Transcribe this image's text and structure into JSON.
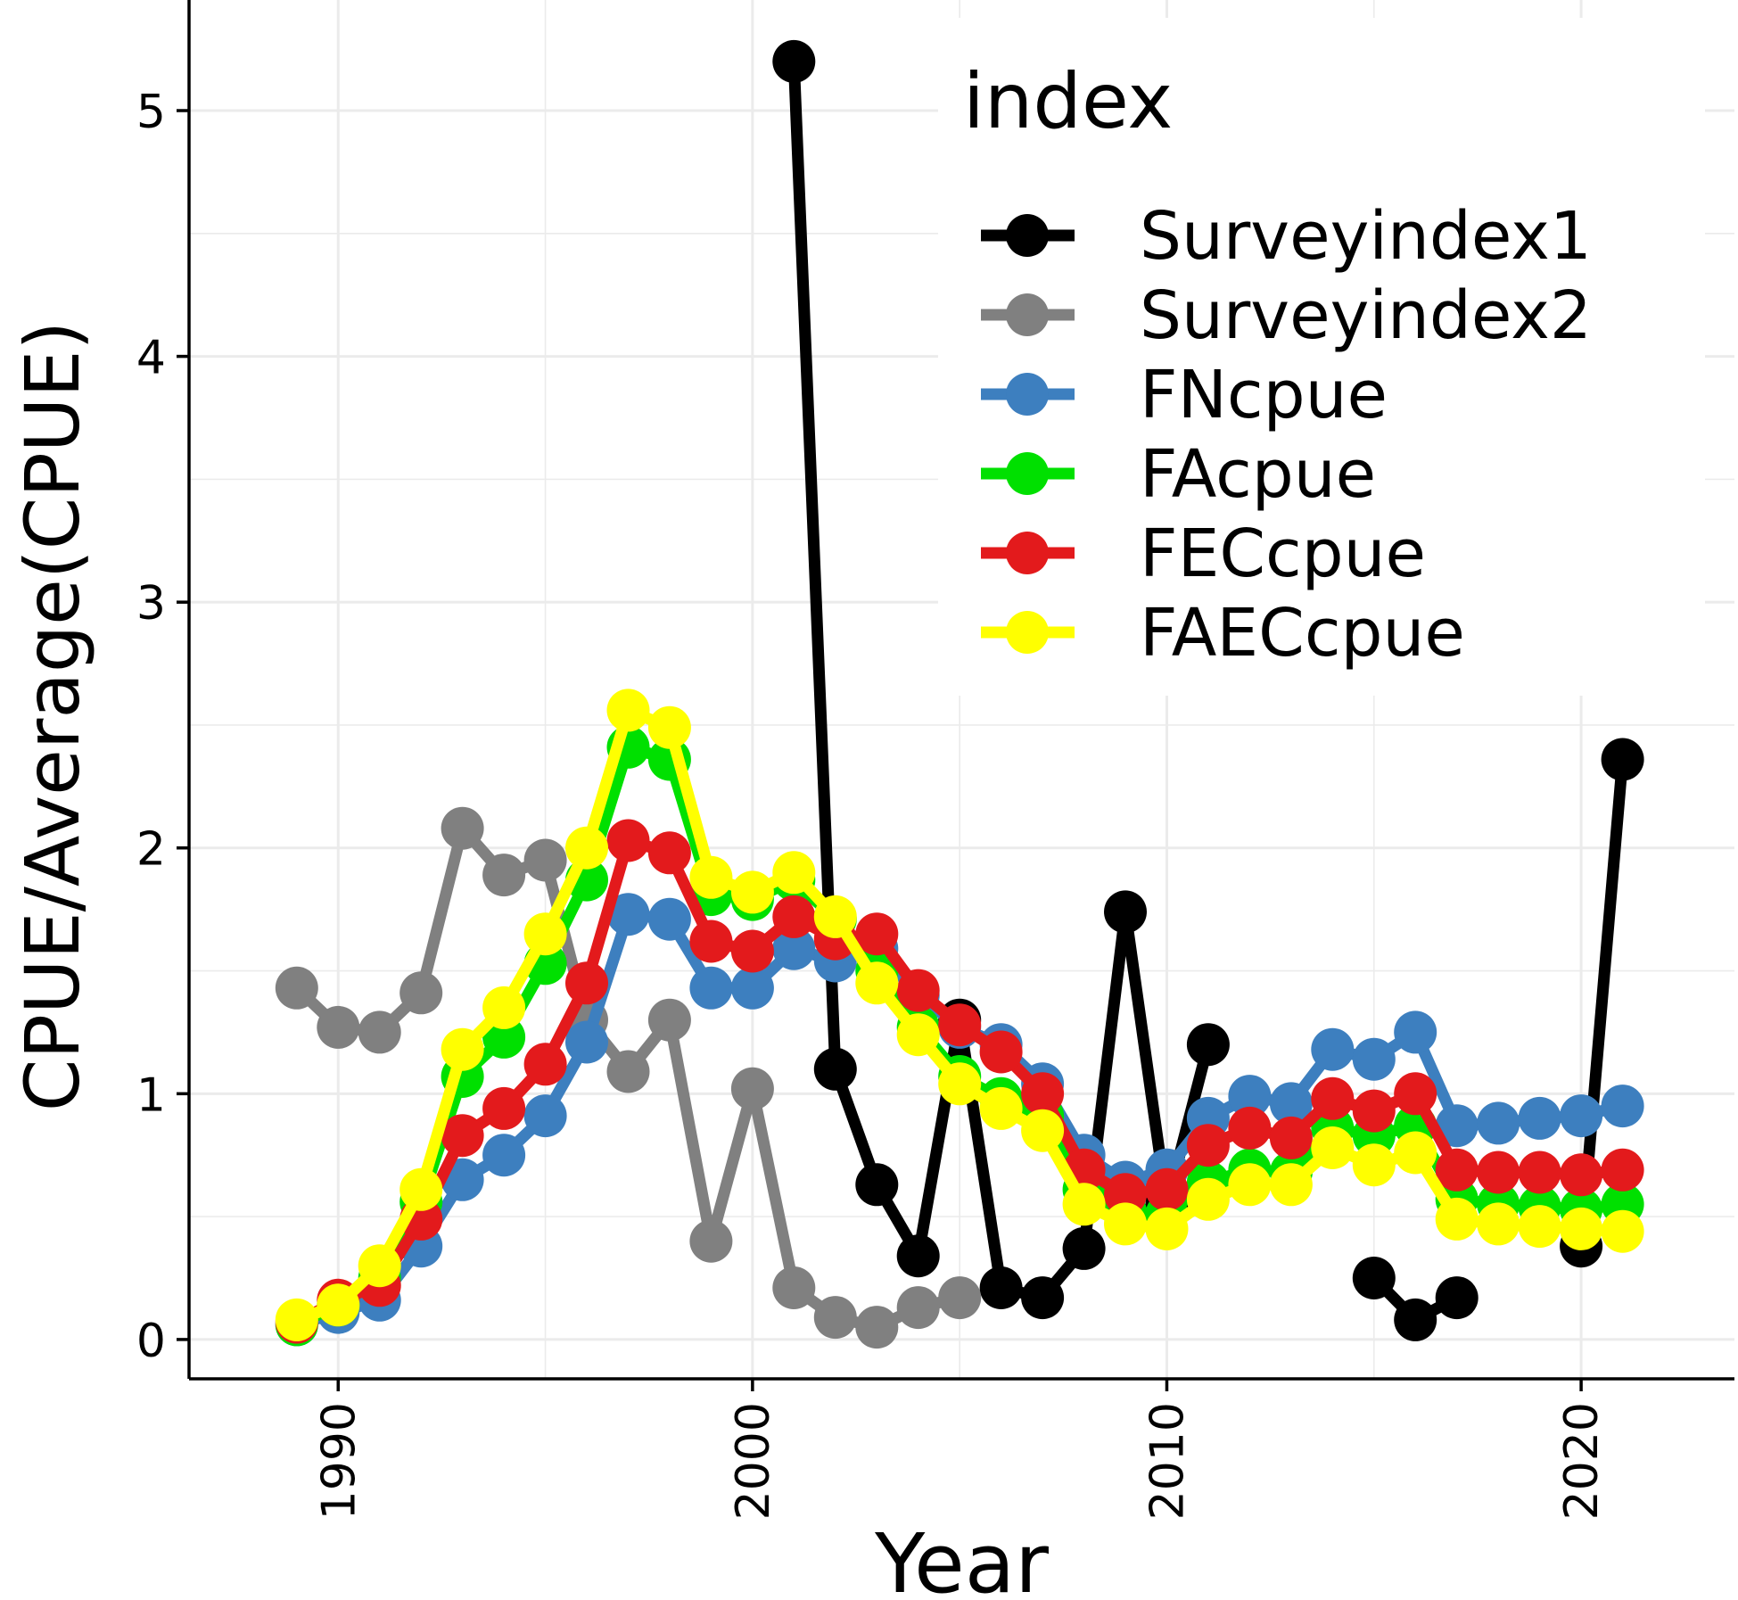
{
  "chart_data": {
    "type": "line",
    "title": "",
    "xlabel": "Year",
    "ylabel": "CPUE/Average(CPUE)",
    "xlim": [
      1986.4,
      2023.7
    ],
    "ylim": [
      -0.16,
      5.45
    ],
    "xticks": [
      1990,
      2000,
      2010,
      2020
    ],
    "yticks": [
      0,
      1,
      2,
      3,
      4,
      5
    ],
    "grid": true,
    "legend": {
      "title": "index",
      "position": "top-right"
    },
    "series": [
      {
        "name": "Surveyindex1",
        "color": "#000000",
        "points": [
          [
            2001,
            5.2
          ],
          [
            2002,
            1.1
          ],
          [
            2003,
            0.63
          ],
          [
            2004,
            0.34
          ],
          [
            2005,
            1.3
          ],
          [
            2006,
            0.21
          ],
          [
            2007,
            0.17
          ],
          [
            2008,
            0.37
          ],
          [
            2009,
            1.74
          ],
          [
            2010,
            0.55
          ],
          [
            2011,
            1.2
          ],
          null,
          [
            2015,
            0.25
          ],
          [
            2016,
            0.08
          ],
          [
            2017,
            0.17
          ],
          null,
          [
            2020,
            0.38
          ],
          [
            2021,
            2.36
          ]
        ]
      },
      {
        "name": "Surveyindex2",
        "color": "#808080",
        "points": [
          [
            1989,
            1.43
          ],
          [
            1990,
            1.27
          ],
          [
            1991,
            1.25
          ],
          [
            1992,
            1.41
          ],
          [
            1993,
            2.08
          ],
          [
            1994,
            1.89
          ],
          [
            1995,
            1.95
          ],
          [
            1996,
            1.3
          ],
          [
            1997,
            1.09
          ],
          [
            1998,
            1.3
          ],
          [
            1999,
            0.4
          ],
          [
            2000,
            1.02
          ],
          [
            2001,
            0.21
          ],
          [
            2002,
            0.09
          ],
          [
            2003,
            0.05
          ],
          [
            2004,
            0.13
          ],
          [
            2005,
            0.17
          ]
        ]
      },
      {
        "name": "FNcpue",
        "color": "#3d7fbf",
        "points": [
          [
            1989,
            0.06
          ],
          [
            1990,
            0.11
          ],
          [
            1991,
            0.16
          ],
          [
            1992,
            0.38
          ],
          [
            1993,
            0.65
          ],
          [
            1994,
            0.75
          ],
          [
            1995,
            0.91
          ],
          [
            1996,
            1.21
          ],
          [
            1997,
            1.73
          ],
          [
            1998,
            1.71
          ],
          [
            1999,
            1.43
          ],
          [
            2000,
            1.43
          ],
          [
            2001,
            1.59
          ],
          [
            2002,
            1.54
          ],
          [
            2003,
            1.59
          ],
          [
            2004,
            1.4
          ],
          [
            2005,
            1.27
          ],
          [
            2006,
            1.2
          ],
          [
            2007,
            1.04
          ],
          [
            2008,
            0.75
          ],
          [
            2009,
            0.64
          ],
          [
            2010,
            0.69
          ],
          [
            2011,
            0.9
          ],
          [
            2012,
            0.99
          ],
          [
            2013,
            0.96
          ],
          [
            2014,
            1.18
          ],
          [
            2015,
            1.14
          ],
          [
            2016,
            1.25
          ],
          [
            2017,
            0.87
          ],
          [
            2018,
            0.88
          ],
          [
            2019,
            0.9
          ],
          [
            2020,
            0.91
          ],
          [
            2021,
            0.95
          ]
        ]
      },
      {
        "name": "FAcpue",
        "color": "#00e000",
        "points": [
          [
            1989,
            0.06
          ],
          [
            1990,
            0.14
          ],
          [
            1991,
            0.25
          ],
          [
            1992,
            0.56
          ],
          [
            1993,
            1.07
          ],
          [
            1994,
            1.23
          ],
          [
            1995,
            1.53
          ],
          [
            1996,
            1.87
          ],
          [
            1997,
            2.41
          ],
          [
            1998,
            2.36
          ],
          [
            1999,
            1.81
          ],
          [
            2000,
            1.79
          ],
          [
            2001,
            1.87
          ],
          [
            2002,
            1.71
          ],
          [
            2003,
            1.5
          ],
          [
            2004,
            1.27
          ],
          [
            2005,
            1.07
          ],
          [
            2006,
            0.98
          ],
          [
            2007,
            0.91
          ],
          [
            2008,
            0.61
          ],
          [
            2009,
            0.52
          ],
          [
            2010,
            0.51
          ],
          [
            2011,
            0.64
          ],
          [
            2012,
            0.69
          ],
          [
            2013,
            0.68
          ],
          [
            2014,
            0.86
          ],
          [
            2015,
            0.83
          ],
          [
            2016,
            0.87
          ],
          [
            2017,
            0.57
          ],
          [
            2018,
            0.55
          ],
          [
            2019,
            0.54
          ],
          [
            2020,
            0.53
          ],
          [
            2021,
            0.55
          ]
        ]
      },
      {
        "name": "FECcpue",
        "color": "#e31a1c",
        "points": [
          [
            1989,
            0.07
          ],
          [
            1990,
            0.16
          ],
          [
            1991,
            0.22
          ],
          [
            1992,
            0.49
          ],
          [
            1993,
            0.83
          ],
          [
            1994,
            0.94
          ],
          [
            1995,
            1.12
          ],
          [
            1996,
            1.45
          ],
          [
            1997,
            2.03
          ],
          [
            1998,
            1.98
          ],
          [
            1999,
            1.62
          ],
          [
            2000,
            1.58
          ],
          [
            2001,
            1.72
          ],
          [
            2002,
            1.63
          ],
          [
            2003,
            1.65
          ],
          [
            2004,
            1.42
          ],
          [
            2005,
            1.28
          ],
          [
            2006,
            1.17
          ],
          [
            2007,
            1.0
          ],
          [
            2008,
            0.69
          ],
          [
            2009,
            0.59
          ],
          [
            2010,
            0.61
          ],
          [
            2011,
            0.79
          ],
          [
            2012,
            0.86
          ],
          [
            2013,
            0.82
          ],
          [
            2014,
            0.98
          ],
          [
            2015,
            0.93
          ],
          [
            2016,
            1.0
          ],
          [
            2017,
            0.69
          ],
          [
            2018,
            0.68
          ],
          [
            2019,
            0.68
          ],
          [
            2020,
            0.67
          ],
          [
            2021,
            0.69
          ]
        ]
      },
      {
        "name": "FAECcpue",
        "color": "#ffff00",
        "points": [
          [
            1989,
            0.08
          ],
          [
            1990,
            0.14
          ],
          [
            1991,
            0.3
          ],
          [
            1992,
            0.61
          ],
          [
            1993,
            1.18
          ],
          [
            1994,
            1.35
          ],
          [
            1995,
            1.65
          ],
          [
            1996,
            2.0
          ],
          [
            1997,
            2.56
          ],
          [
            1998,
            2.49
          ],
          [
            1999,
            1.88
          ],
          [
            2000,
            1.82
          ],
          [
            2001,
            1.9
          ],
          [
            2002,
            1.72
          ],
          [
            2003,
            1.45
          ],
          [
            2004,
            1.24
          ],
          [
            2005,
            1.04
          ],
          [
            2006,
            0.94
          ],
          [
            2007,
            0.85
          ],
          [
            2008,
            0.55
          ],
          [
            2009,
            0.47
          ],
          [
            2010,
            0.45
          ],
          [
            2011,
            0.57
          ],
          [
            2012,
            0.63
          ],
          [
            2013,
            0.63
          ],
          [
            2014,
            0.78
          ],
          [
            2015,
            0.71
          ],
          [
            2016,
            0.76
          ],
          [
            2017,
            0.49
          ],
          [
            2018,
            0.47
          ],
          [
            2019,
            0.46
          ],
          [
            2020,
            0.45
          ],
          [
            2021,
            0.44
          ]
        ]
      }
    ]
  }
}
